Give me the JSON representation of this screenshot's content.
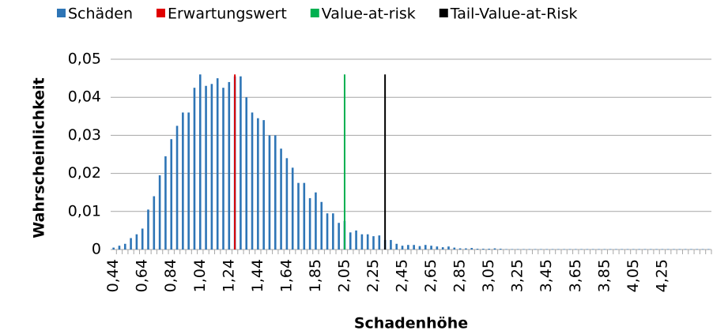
{
  "chart_data": {
    "type": "bar",
    "x_label": "Schadenhöhe",
    "y_label": "Wahrscheinlichkeit",
    "categories": [
      "0,44",
      null,
      null,
      null,
      null,
      "0,64",
      null,
      null,
      null,
      null,
      "0,84",
      null,
      null,
      null,
      null,
      "1,04",
      null,
      null,
      null,
      null,
      "1,24",
      null,
      null,
      null,
      null,
      "1,44",
      null,
      null,
      null,
      null,
      "1,64",
      null,
      null,
      null,
      null,
      "1,85",
      null,
      null,
      null,
      null,
      "2,05",
      null,
      null,
      null,
      null,
      "2,25",
      null,
      null,
      null,
      null,
      "2,45",
      null,
      null,
      null,
      null,
      "2,65",
      null,
      null,
      null,
      null,
      "2,85",
      null,
      null,
      null,
      null,
      "3,05",
      null,
      null,
      null,
      null,
      "3,25",
      null,
      null,
      null,
      null,
      "3,45",
      null,
      null,
      null,
      null,
      "3,65",
      null,
      null,
      null,
      null,
      "3,85",
      null,
      null,
      null,
      null,
      "4,05",
      null,
      null,
      null,
      null,
      "4,25",
      null,
      null,
      null,
      null,
      null,
      null,
      null,
      null
    ],
    "series": [
      {
        "name": "Schäden",
        "color": "#2e75b6",
        "values": [
          0.0005,
          0.001,
          0.0015,
          0.003,
          0.004,
          0.0055,
          0.0105,
          0.014,
          0.0195,
          0.0245,
          0.029,
          0.0325,
          0.036,
          0.036,
          0.0425,
          0.046,
          0.043,
          0.0435,
          0.045,
          0.0425,
          0.044,
          0.0455,
          0.0455,
          0.04,
          0.036,
          0.0345,
          0.034,
          0.03,
          0.03,
          0.0265,
          0.024,
          0.0215,
          0.0175,
          0.0175,
          0.0135,
          0.015,
          0.0125,
          0.0095,
          0.0095,
          0.007,
          0.0075,
          0.0045,
          0.005,
          0.004,
          0.004,
          0.0035,
          0.0037,
          0.0025,
          0.0025,
          0.0015,
          0.001,
          0.0012,
          0.0012,
          0.0009,
          0.0012,
          0.001,
          0.0008,
          0.0006,
          0.0008,
          0.0005,
          0.0003,
          0.0003,
          0.0004,
          0.0002,
          0.0002,
          0.0002,
          0.0003,
          0.0002,
          0.0001,
          0.0001,
          0.0001,
          0.0001,
          0.0001,
          0.0001,
          0.0001,
          0.0001,
          0.0001,
          0.0001,
          0.0001,
          0.0001,
          0.0001,
          0.0001,
          0.0001,
          0.0001,
          0.0001,
          0.0001,
          0.0001,
          0.0001,
          0.0001,
          0.0001,
          0.0001,
          0.0001,
          0.0001,
          0.0001,
          0.0001,
          0.0001,
          0.0001,
          0.0001,
          0.0001,
          0.0001,
          0.0001,
          0.0001,
          0.0001,
          0.0001
        ]
      },
      {
        "name": "Erwartungswert",
        "color": "#e00000",
        "values": [
          null,
          null,
          null,
          null,
          null,
          null,
          null,
          null,
          null,
          null,
          null,
          null,
          null,
          null,
          null,
          null,
          null,
          null,
          null,
          null,
          null,
          0.046,
          null,
          null,
          null,
          null,
          null,
          null,
          null,
          null,
          null,
          null,
          null,
          null,
          null,
          null,
          null,
          null,
          null,
          null,
          null,
          null,
          null,
          null,
          null,
          null,
          null,
          null,
          null,
          null,
          null,
          null,
          null,
          null,
          null,
          null,
          null,
          null,
          null,
          null,
          null,
          null,
          null,
          null,
          null,
          null,
          null,
          null,
          null,
          null,
          null,
          null,
          null,
          null,
          null,
          null,
          null,
          null,
          null,
          null,
          null,
          null,
          null,
          null,
          null,
          null,
          null,
          null,
          null,
          null,
          null,
          null,
          null,
          null,
          null,
          null,
          null,
          null,
          null,
          null,
          null,
          null,
          null,
          null
        ]
      },
      {
        "name": "Value-at-risk",
        "color": "#00b050",
        "values": [
          null,
          null,
          null,
          null,
          null,
          null,
          null,
          null,
          null,
          null,
          null,
          null,
          null,
          null,
          null,
          null,
          null,
          null,
          null,
          null,
          null,
          null,
          null,
          null,
          null,
          null,
          null,
          null,
          null,
          null,
          null,
          null,
          null,
          null,
          null,
          null,
          null,
          null,
          null,
          null,
          0.046,
          null,
          null,
          null,
          null,
          null,
          null,
          null,
          null,
          null,
          null,
          null,
          null,
          null,
          null,
          null,
          null,
          null,
          null,
          null,
          null,
          null,
          null,
          null,
          null,
          null,
          null,
          null,
          null,
          null,
          null,
          null,
          null,
          null,
          null,
          null,
          null,
          null,
          null,
          null,
          null,
          null,
          null,
          null,
          null,
          null,
          null,
          null,
          null,
          null,
          null,
          null,
          null,
          null,
          null,
          null,
          null,
          null,
          null,
          null,
          null,
          null,
          null,
          null
        ]
      },
      {
        "name": "Tail-Value-at-Risk",
        "color": "#000000",
        "values": [
          null,
          null,
          null,
          null,
          null,
          null,
          null,
          null,
          null,
          null,
          null,
          null,
          null,
          null,
          null,
          null,
          null,
          null,
          null,
          null,
          null,
          null,
          null,
          null,
          null,
          null,
          null,
          null,
          null,
          null,
          null,
          null,
          null,
          null,
          null,
          null,
          null,
          null,
          null,
          null,
          null,
          null,
          null,
          null,
          null,
          null,
          null,
          0.046,
          null,
          null,
          null,
          null,
          null,
          null,
          null,
          null,
          null,
          null,
          null,
          null,
          null,
          null,
          null,
          null,
          null,
          null,
          null,
          null,
          null,
          null,
          null,
          null,
          null,
          null,
          null,
          null,
          null,
          null,
          null,
          null,
          null,
          null,
          null,
          null,
          null,
          null,
          null,
          null,
          null,
          null,
          null,
          null,
          null,
          null,
          null,
          null,
          null,
          null,
          null,
          null,
          null,
          null,
          null,
          null
        ]
      }
    ],
    "ylim": [
      0,
      0.05
    ],
    "yticks": [
      {
        "value": 0,
        "label": "0"
      },
      {
        "value": 0.01,
        "label": "0,01"
      },
      {
        "value": 0.02,
        "label": "0,02"
      },
      {
        "value": 0.03,
        "label": "0,03"
      },
      {
        "value": 0.04,
        "label": "0,04"
      },
      {
        "value": 0.05,
        "label": "0,05"
      }
    ],
    "grid": true,
    "legend": "top"
  }
}
